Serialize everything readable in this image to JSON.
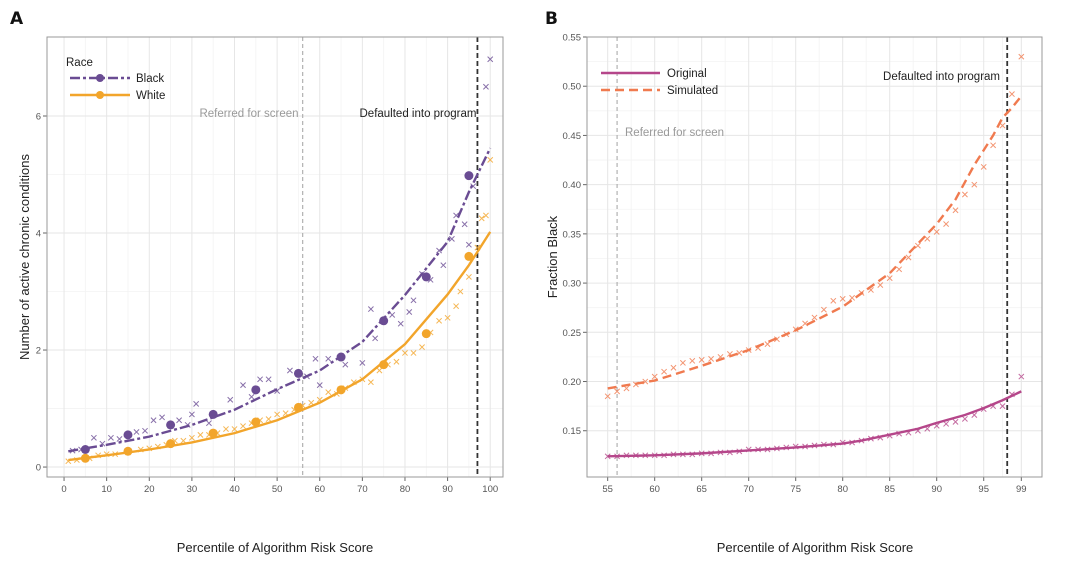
{
  "chart_data": [
    {
      "panel": "A",
      "type": "scatter",
      "xlabel": "Percentile of Algorithm Risk Score",
      "ylabel": "Number of active chronic conditions",
      "xlim": [
        -4,
        103
      ],
      "ylim": [
        -0.17,
        7.35
      ],
      "xticks": [
        0,
        10,
        20,
        30,
        40,
        50,
        60,
        70,
        80,
        90,
        100
      ],
      "yticks": [
        0,
        2,
        4,
        6
      ],
      "grid": true,
      "legend": {
        "title": "Race",
        "placement": "top-left"
      },
      "vlines": [
        {
          "x": 56,
          "label": "Referred for screen",
          "color": "#aaaaaa"
        },
        {
          "x": 97,
          "label": "Defaulted into program",
          "color": "#333333"
        }
      ],
      "series": [
        {
          "name": "Black",
          "color": "#6a4c93",
          "linestyle": "dashdot",
          "decile_means": [
            [
              5,
              0.3
            ],
            [
              15,
              0.55
            ],
            [
              25,
              0.72
            ],
            [
              35,
              0.9
            ],
            [
              45,
              1.32
            ],
            [
              55,
              1.6
            ],
            [
              65,
              1.88
            ],
            [
              75,
              2.5
            ],
            [
              85,
              3.25
            ],
            [
              95,
              4.98
            ]
          ],
          "points": [
            [
              2,
              0.28
            ],
            [
              4,
              0.3
            ],
            [
              7,
              0.5
            ],
            [
              9,
              0.4
            ],
            [
              11,
              0.5
            ],
            [
              13,
              0.48
            ],
            [
              17,
              0.6
            ],
            [
              19,
              0.62
            ],
            [
              21,
              0.8
            ],
            [
              23,
              0.85
            ],
            [
              27,
              0.8
            ],
            [
              29,
              0.72
            ],
            [
              30,
              0.9
            ],
            [
              31,
              1.08
            ],
            [
              34,
              0.75
            ],
            [
              39,
              1.15
            ],
            [
              42,
              1.4
            ],
            [
              44,
              1.2
            ],
            [
              46,
              1.5
            ],
            [
              48,
              1.5
            ],
            [
              50,
              1.3
            ],
            [
              53,
              1.65
            ],
            [
              57,
              1.55
            ],
            [
              59,
              1.85
            ],
            [
              60,
              1.4
            ],
            [
              62,
              1.85
            ],
            [
              66,
              1.75
            ],
            [
              70,
              1.78
            ],
            [
              72,
              2.7
            ],
            [
              73,
              2.2
            ],
            [
              77,
              2.6
            ],
            [
              79,
              2.45
            ],
            [
              81,
              2.65
            ],
            [
              82,
              2.85
            ],
            [
              84,
              3.3
            ],
            [
              86,
              3.2
            ],
            [
              88,
              3.7
            ],
            [
              89,
              3.45
            ],
            [
              91,
              3.9
            ],
            [
              92,
              4.3
            ],
            [
              94,
              4.15
            ],
            [
              95,
              3.8
            ],
            [
              96,
              4.8
            ],
            [
              99,
              6.5
            ],
            [
              100,
              6.97
            ]
          ],
          "fit": [
            [
              1,
              0.27
            ],
            [
              10,
              0.38
            ],
            [
              20,
              0.52
            ],
            [
              30,
              0.72
            ],
            [
              40,
              0.98
            ],
            [
              50,
              1.33
            ],
            [
              60,
              1.65
            ],
            [
              70,
              2.14
            ],
            [
              80,
              2.94
            ],
            [
              90,
              3.85
            ],
            [
              95,
              4.7
            ],
            [
              100,
              5.45
            ]
          ]
        },
        {
          "name": "White",
          "color": "#f2a52b",
          "linestyle": "solid",
          "decile_means": [
            [
              5,
              0.15
            ],
            [
              15,
              0.27
            ],
            [
              25,
              0.4
            ],
            [
              35,
              0.58
            ],
            [
              45,
              0.77
            ],
            [
              55,
              1.02
            ],
            [
              65,
              1.32
            ],
            [
              75,
              1.75
            ],
            [
              85,
              2.28
            ],
            [
              95,
              3.6
            ]
          ],
          "points": [
            [
              1,
              0.1
            ],
            [
              3,
              0.12
            ],
            [
              6,
              0.15
            ],
            [
              8,
              0.2
            ],
            [
              10,
              0.22
            ],
            [
              12,
              0.22
            ],
            [
              15,
              0.25
            ],
            [
              18,
              0.3
            ],
            [
              20,
              0.32
            ],
            [
              22,
              0.35
            ],
            [
              24,
              0.38
            ],
            [
              26,
              0.45
            ],
            [
              28,
              0.45
            ],
            [
              30,
              0.5
            ],
            [
              32,
              0.55
            ],
            [
              34,
              0.55
            ],
            [
              36,
              0.58
            ],
            [
              38,
              0.65
            ],
            [
              40,
              0.65
            ],
            [
              42,
              0.7
            ],
            [
              44,
              0.75
            ],
            [
              46,
              0.8
            ],
            [
              48,
              0.82
            ],
            [
              50,
              0.9
            ],
            [
              52,
              0.92
            ],
            [
              54,
              0.98
            ],
            [
              56,
              1.05
            ],
            [
              58,
              1.1
            ],
            [
              60,
              1.15
            ],
            [
              62,
              1.28
            ],
            [
              64,
              1.25
            ],
            [
              66,
              1.35
            ],
            [
              68,
              1.45
            ],
            [
              70,
              1.5
            ],
            [
              72,
              1.45
            ],
            [
              74,
              1.65
            ],
            [
              76,
              1.75
            ],
            [
              78,
              1.8
            ],
            [
              80,
              1.95
            ],
            [
              82,
              1.95
            ],
            [
              84,
              2.05
            ],
            [
              86,
              2.3
            ],
            [
              88,
              2.5
            ],
            [
              90,
              2.55
            ],
            [
              92,
              2.75
            ],
            [
              93,
              3.0
            ],
            [
              95,
              3.25
            ],
            [
              97,
              3.75
            ],
            [
              98,
              4.25
            ],
            [
              99,
              4.3
            ],
            [
              100,
              5.25
            ]
          ],
          "fit": [
            [
              1,
              0.12
            ],
            [
              10,
              0.2
            ],
            [
              20,
              0.3
            ],
            [
              30,
              0.42
            ],
            [
              40,
              0.58
            ],
            [
              50,
              0.8
            ],
            [
              60,
              1.1
            ],
            [
              70,
              1.5
            ],
            [
              80,
              2.1
            ],
            [
              90,
              2.95
            ],
            [
              95,
              3.45
            ],
            [
              100,
              4.02
            ]
          ]
        }
      ]
    },
    {
      "panel": "B",
      "type": "scatter",
      "xlabel": "Percentile of Algorithm Risk Score",
      "ylabel": "Fraction Black",
      "xlim": [
        52.8,
        101.2
      ],
      "ylim": [
        0.103,
        0.55
      ],
      "xticks": [
        55,
        60,
        65,
        70,
        75,
        80,
        85,
        90,
        95,
        99
      ],
      "yticks": [
        0.15,
        0.2,
        0.25,
        0.3,
        0.35,
        0.4,
        0.45,
        0.5,
        0.55
      ],
      "ytick_labels": [
        "0.15",
        "0.20",
        "0.25",
        "0.30",
        "0.35",
        "0.40",
        "0.45",
        "0.50",
        "0.55"
      ],
      "grid": true,
      "legend": {
        "placement": "top-left"
      },
      "vlines": [
        {
          "x": 56,
          "label": "Referred for screen",
          "color": "#aaaaaa"
        },
        {
          "x": 97.5,
          "label": "Defaulted into program",
          "color": "#333333"
        }
      ],
      "series": [
        {
          "name": "Original",
          "color": "#b5468a",
          "linestyle": "solid",
          "points": [
            [
              55,
              0.124
            ],
            [
              56,
              0.124
            ],
            [
              57,
              0.125
            ],
            [
              58,
              0.125
            ],
            [
              59,
              0.125
            ],
            [
              60,
              0.125
            ],
            [
              61,
              0.125
            ],
            [
              62,
              0.126
            ],
            [
              63,
              0.126
            ],
            [
              64,
              0.126
            ],
            [
              65,
              0.127
            ],
            [
              66,
              0.127
            ],
            [
              67,
              0.128
            ],
            [
              68,
              0.128
            ],
            [
              69,
              0.129
            ],
            [
              70,
              0.131
            ],
            [
              71,
              0.131
            ],
            [
              72,
              0.131
            ],
            [
              73,
              0.132
            ],
            [
              74,
              0.133
            ],
            [
              75,
              0.134
            ],
            [
              76,
              0.134
            ],
            [
              77,
              0.135
            ],
            [
              78,
              0.136
            ],
            [
              79,
              0.136
            ],
            [
              80,
              0.138
            ],
            [
              81,
              0.138
            ],
            [
              82,
              0.14
            ],
            [
              83,
              0.142
            ],
            [
              84,
              0.143
            ],
            [
              85,
              0.145
            ],
            [
              86,
              0.147
            ],
            [
              87,
              0.148
            ],
            [
              88,
              0.15
            ],
            [
              89,
              0.152
            ],
            [
              90,
              0.155
            ],
            [
              91,
              0.157
            ],
            [
              92,
              0.159
            ],
            [
              93,
              0.162
            ],
            [
              94,
              0.166
            ],
            [
              95,
              0.172
            ],
            [
              96,
              0.175
            ],
            [
              97,
              0.175
            ],
            [
              98,
              0.187
            ],
            [
              99,
              0.205
            ]
          ],
          "fit": [
            [
              55,
              0.124
            ],
            [
              60,
              0.125
            ],
            [
              65,
              0.127
            ],
            [
              70,
              0.13
            ],
            [
              75,
              0.133
            ],
            [
              80,
              0.137
            ],
            [
              82,
              0.14
            ],
            [
              85,
              0.146
            ],
            [
              88,
              0.152
            ],
            [
              90,
              0.158
            ],
            [
              93,
              0.166
            ],
            [
              95,
              0.173
            ],
            [
              97,
              0.181
            ],
            [
              99,
              0.19
            ]
          ]
        },
        {
          "name": "Simulated",
          "color": "#f07a4f",
          "linestyle": "dashed",
          "points": [
            [
              55,
              0.185
            ],
            [
              56,
              0.19
            ],
            [
              57,
              0.193
            ],
            [
              58,
              0.197
            ],
            [
              59,
              0.2
            ],
            [
              60,
              0.205
            ],
            [
              61,
              0.21
            ],
            [
              62,
              0.214
            ],
            [
              63,
              0.219
            ],
            [
              64,
              0.221
            ],
            [
              65,
              0.222
            ],
            [
              66,
              0.223
            ],
            [
              67,
              0.225
            ],
            [
              68,
              0.228
            ],
            [
              69,
              0.229
            ],
            [
              70,
              0.232
            ],
            [
              71,
              0.234
            ],
            [
              72,
              0.238
            ],
            [
              73,
              0.243
            ],
            [
              74,
              0.248
            ],
            [
              75,
              0.253
            ],
            [
              76,
              0.259
            ],
            [
              77,
              0.265
            ],
            [
              78,
              0.273
            ],
            [
              79,
              0.282
            ],
            [
              80,
              0.284
            ],
            [
              81,
              0.285
            ],
            [
              82,
              0.29
            ],
            [
              83,
              0.293
            ],
            [
              84,
              0.298
            ],
            [
              85,
              0.305
            ],
            [
              86,
              0.314
            ],
            [
              87,
              0.326
            ],
            [
              88,
              0.338
            ],
            [
              89,
              0.345
            ],
            [
              90,
              0.352
            ],
            [
              91,
              0.36
            ],
            [
              92,
              0.374
            ],
            [
              93,
              0.39
            ],
            [
              94,
              0.4
            ],
            [
              95,
              0.418
            ],
            [
              96,
              0.44
            ],
            [
              97,
              0.46
            ],
            [
              98,
              0.492
            ],
            [
              99,
              0.53
            ]
          ],
          "fit": [
            [
              55,
              0.193
            ],
            [
              60,
              0.201
            ],
            [
              65,
              0.216
            ],
            [
              70,
              0.232
            ],
            [
              75,
              0.252
            ],
            [
              80,
              0.276
            ],
            [
              85,
              0.31
            ],
            [
              90,
              0.36
            ],
            [
              92,
              0.385
            ],
            [
              94,
              0.42
            ],
            [
              96,
              0.45
            ],
            [
              97,
              0.468
            ],
            [
              98,
              0.478
            ],
            [
              99,
              0.49
            ]
          ]
        }
      ]
    }
  ]
}
